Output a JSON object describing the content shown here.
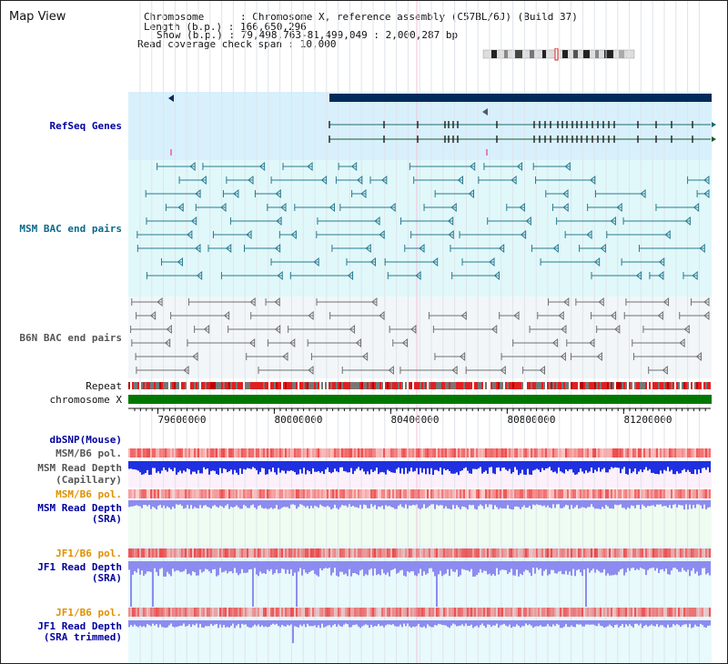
{
  "view_title": "Map View",
  "info_lines": [
    "Chromosome      : Chromosome X, reference assembly (C57BL/6J) (Build 37)",
    "Length (b.p.) : 166,650,296",
    "Show (b.p.) : 79,498,763-81,499,049 : 2,000,287 bp",
    "Read coverage check span : 10,000"
  ],
  "tracks": {
    "refseq": "RefSeq Genes",
    "msm_bac": "MSM BAC end pairs",
    "b6n_bac": "B6N BAC end pairs",
    "repeat": "Repeat",
    "chromosome": "chromosome X",
    "dbsnp": "dbSNP(Mouse)",
    "msm_b6_pol_1": "MSM/B6 pol.",
    "msm_depth_cap_1": "MSM Read Depth",
    "msm_depth_cap_2": "(Capillary)",
    "msm_b6_pol_2": "MSM/B6 pol.",
    "msm_depth_sra_1": "MSM Read Depth",
    "msm_depth_sra_2": "(SRA)",
    "jf1_pol_1": "JF1/B6 pol.",
    "jf1_depth_1": "JF1 Read Depth",
    "jf1_depth_2": "(SRA)",
    "jf1_pol_2": "JF1/B6 pol.",
    "jf1_trim_1": "JF1 Read Depth",
    "jf1_trim_2": "(SRA trimmed)"
  },
  "axis_ticks": [
    {
      "pos": 79600000,
      "label": "79600000"
    },
    {
      "pos": 80000000,
      "label": "80000000"
    },
    {
      "pos": 80400000,
      "label": "80400000"
    },
    {
      "pos": 80800000,
      "label": "80800000"
    },
    {
      "pos": 81200000,
      "label": "81200000"
    }
  ],
  "region": {
    "start": 79498763,
    "end": 81499049
  },
  "colors": {
    "label_blue": "#0000a0",
    "label_teal": "#0a6a8a",
    "label_gray": "#555555",
    "label_orange": "#e09000",
    "refseq_bg": "#d8f0fc",
    "msm_bg": "#e0f8fa",
    "b6n_bg": "#f2f6f8",
    "chrom_green": "#007800",
    "gene_navy": "#002a5a",
    "msm_line": "#2a7a90",
    "b6n_line": "#707070",
    "depth_blue": "#2030e0",
    "depth_light": "#8c8cf0",
    "pol_red": "#f04040"
  }
}
